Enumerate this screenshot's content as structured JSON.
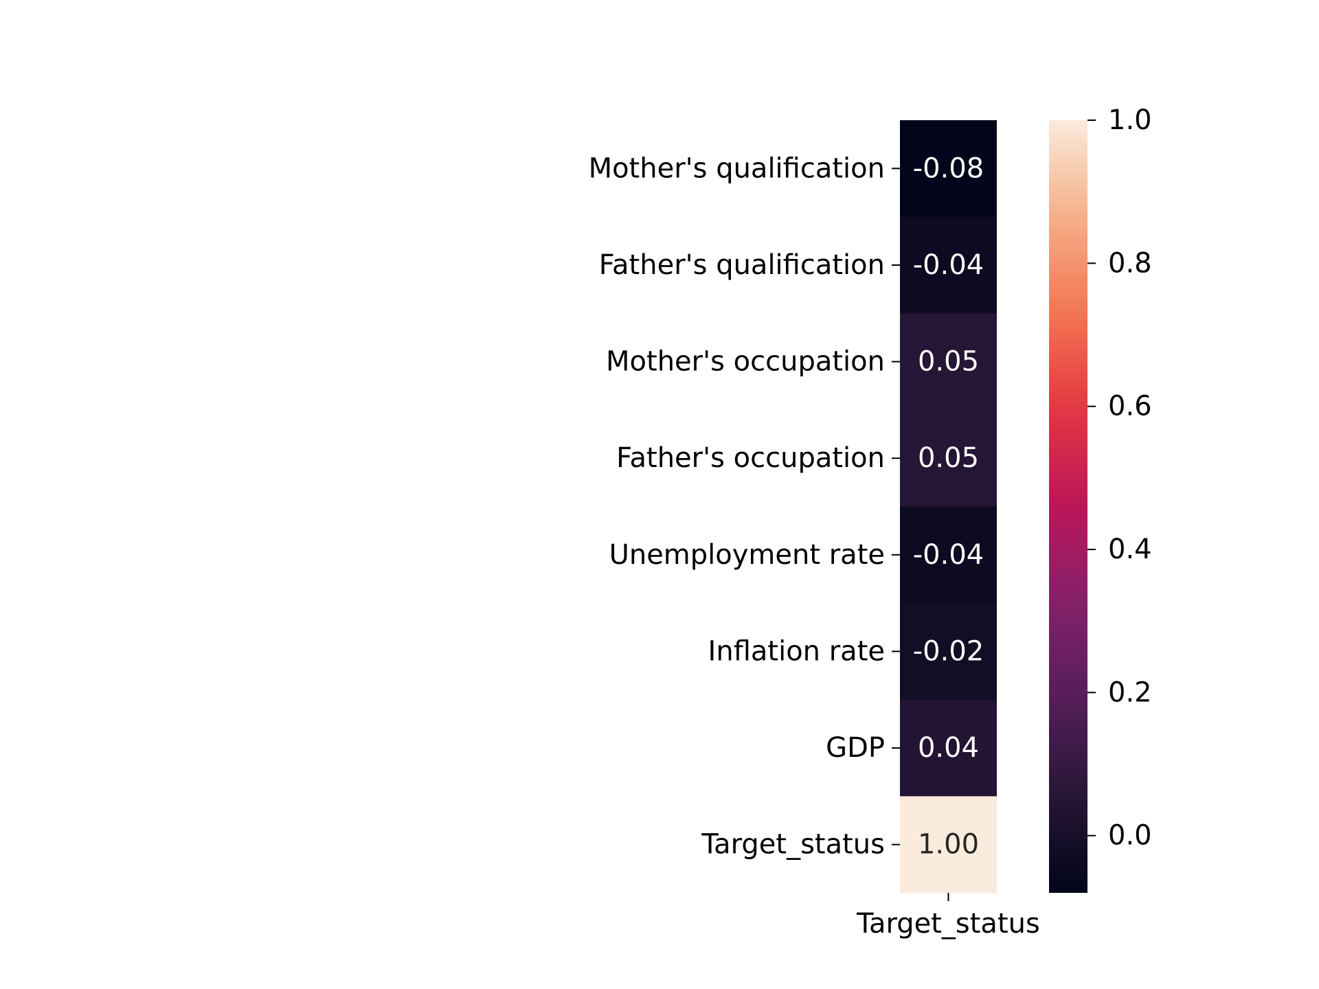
{
  "chart_data": {
    "type": "heatmap",
    "title": "",
    "xlabel": "",
    "ylabel": "",
    "columns": [
      "Target_status"
    ],
    "rows": [
      "Mother's qualification",
      "Father's qualification",
      "Mother's occupation",
      "Father's occupation",
      "Unemployment rate",
      "Inflation rate",
      "GDP",
      "Target_status"
    ],
    "values": [
      -0.08,
      -0.04,
      0.05,
      0.05,
      -0.04,
      -0.02,
      0.04,
      1.0
    ],
    "value_labels": [
      "-0.08",
      "-0.04",
      "0.05",
      "0.05",
      "-0.04",
      "-0.02",
      "0.04",
      "1.00"
    ],
    "colormap": "rocket",
    "colorbar": {
      "range": [
        -0.08,
        1.0
      ],
      "ticks": [
        0.0,
        0.2,
        0.4,
        0.6,
        0.8,
        1.0
      ],
      "tick_labels": [
        "0.0",
        "0.2",
        "0.4",
        "0.6",
        "0.8",
        "1.0"
      ],
      "placement": "right"
    },
    "grid": false
  }
}
